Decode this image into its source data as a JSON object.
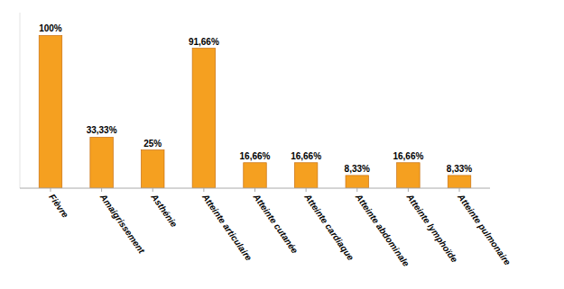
{
  "chart_data": {
    "type": "bar",
    "categories": [
      "Fièvre",
      "Amaigrissement",
      "Asthénie",
      "Atteinte articulaire",
      "Atteinte cutanée",
      "Atteinte cardiaque",
      "Atteinte abdominale",
      "Atteinte lymphoïde",
      "Atteinte pulmonaire"
    ],
    "values": [
      100,
      33.33,
      25,
      91.66,
      16.66,
      16.66,
      8.33,
      16.66,
      8.33
    ],
    "value_labels": [
      "100%",
      "33,33%",
      "25%",
      "91,66%",
      "16,66%",
      "16,66%",
      "8,33%",
      "16,66%",
      "8,33%"
    ],
    "color": "#F5A020",
    "ylim": [
      0,
      115
    ],
    "data_labels": true,
    "tick_labels": "x",
    "grid": false
  }
}
